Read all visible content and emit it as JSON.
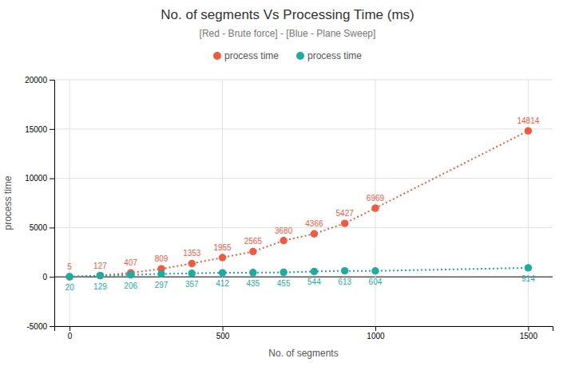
{
  "chart_data": {
    "type": "line",
    "title": "No. of segments Vs Processing Time (ms)",
    "subtitle": "[Red - Brute force] - [Blue - Plane Sweep]",
    "xlabel": "No. of segments",
    "ylabel": "process time",
    "x": [
      0,
      100,
      200,
      300,
      400,
      500,
      600,
      700,
      800,
      900,
      1000,
      1500
    ],
    "series": [
      {
        "name": "process time",
        "color": "#f05a40",
        "marker": "circle",
        "line_style": "dotted",
        "values": [
          5,
          127,
          407,
          809,
          1353,
          1955,
          2565,
          3680,
          4366,
          5427,
          6969,
          14814
        ]
      },
      {
        "name": "process time",
        "color": "#1aada0",
        "marker": "circle",
        "line_style": "dotted",
        "values": [
          20,
          129,
          206,
          297,
          357,
          412,
          435,
          455,
          544,
          613,
          604,
          914
        ]
      }
    ],
    "xlim": [
      -50,
      1580
    ],
    "xticks": [
      0,
      500,
      1000,
      1500
    ],
    "ylim": [
      -5000,
      20000
    ],
    "yticks": [
      -5000,
      0,
      5000,
      10000,
      15000,
      20000
    ],
    "grid": true,
    "legend": "top",
    "data_labels": true
  }
}
